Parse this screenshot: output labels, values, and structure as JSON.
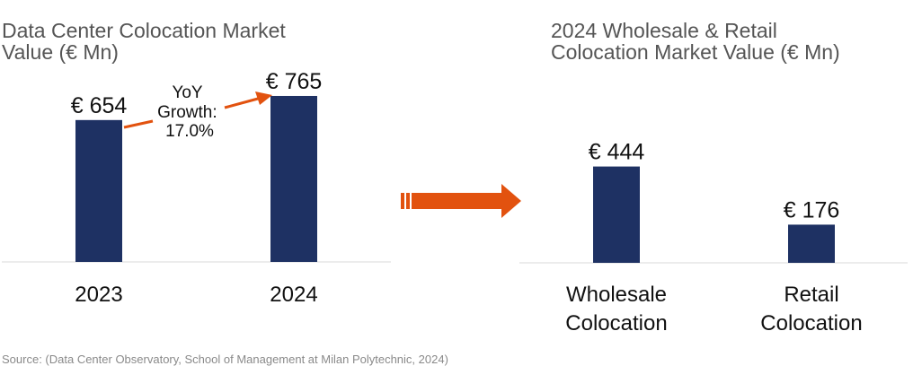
{
  "colors": {
    "bar": "#1e3163",
    "arrow": "#e2520f",
    "baseline": "#d9d9d9"
  },
  "chart_data": [
    {
      "type": "bar",
      "title_lines": [
        "Data Center Colocation Market",
        "Value (€ Mn)"
      ],
      "categories": [
        "2023",
        "2024"
      ],
      "values": [
        654,
        765
      ],
      "value_labels": [
        "€ 654",
        "€ 765"
      ],
      "annotation_lines": [
        "YoY",
        "Growth:",
        "17.0%"
      ],
      "ylim": [
        0,
        860
      ]
    },
    {
      "type": "bar",
      "title_lines": [
        "2024 Wholesale & Retail",
        "Colocation Market Value (€ Mn)"
      ],
      "categories": [
        [
          "Wholesale",
          "Colocation"
        ],
        [
          "Retail",
          "Colocation"
        ]
      ],
      "values": [
        444,
        176
      ],
      "value_labels": [
        "€ 444",
        "€ 176"
      ],
      "ylim": [
        0,
        860
      ]
    }
  ],
  "source": "Source: (Data Center Observatory, School of Management at Milan Polytechnic, 2024)"
}
